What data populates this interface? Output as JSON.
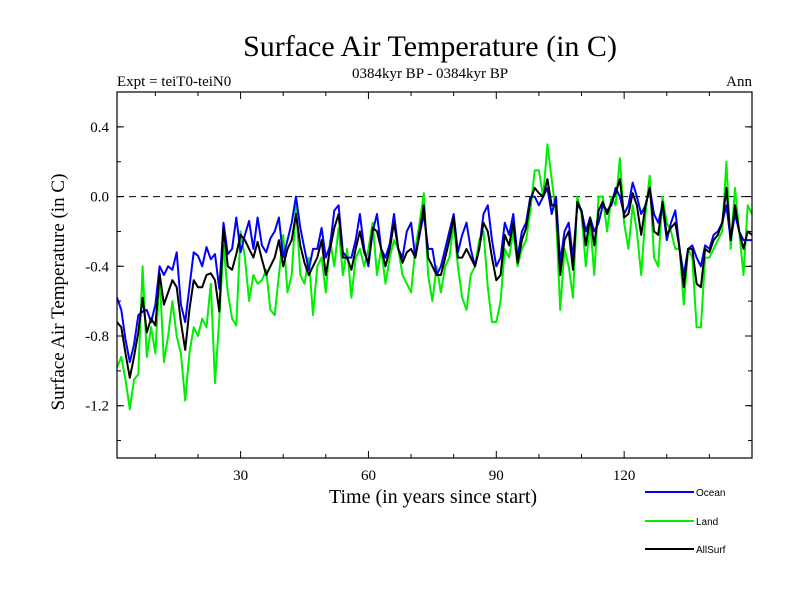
{
  "chart_data": {
    "type": "line",
    "title": "Surface Air Temperature (in C)",
    "subtitle": "0384kyr BP - 0384kyr BP",
    "left_label": "Expt = teiT0-teiN0",
    "right_label": "Ann",
    "xlabel": "Time (in years since start)",
    "ylabel": "Surface Air Temperature (in C)",
    "xlim": [
      1,
      150
    ],
    "ylim": [
      -1.5,
      0.6
    ],
    "xticks": [
      30,
      60,
      90,
      120
    ],
    "yticks": [
      -1.2,
      -0.8,
      -0.4,
      0.0,
      0.4
    ],
    "ytick_labels": [
      "-1.2",
      "-0.8",
      "-0.4",
      "0.0",
      "0.4"
    ],
    "reference_line": 0.0,
    "legend_position": "bottom-right",
    "series": [
      {
        "name": "Ocean",
        "color": "#0000ff",
        "values": [
          -0.58,
          -0.65,
          -0.82,
          -0.95,
          -0.85,
          -0.68,
          -0.66,
          -0.65,
          -0.72,
          -0.62,
          -0.4,
          -0.45,
          -0.4,
          -0.42,
          -0.32,
          -0.62,
          -0.72,
          -0.52,
          -0.32,
          -0.34,
          -0.4,
          -0.29,
          -0.36,
          -0.33,
          -0.53,
          -0.15,
          -0.33,
          -0.3,
          -0.12,
          -0.32,
          -0.22,
          -0.14,
          -0.3,
          -0.12,
          -0.28,
          -0.32,
          -0.24,
          -0.2,
          -0.12,
          -0.35,
          -0.25,
          -0.15,
          0.0,
          -0.18,
          -0.3,
          -0.42,
          -0.3,
          -0.3,
          -0.18,
          -0.35,
          -0.28,
          -0.08,
          -0.05,
          -0.32,
          -0.35,
          -0.35,
          -0.25,
          -0.1,
          -0.3,
          -0.4,
          -0.2,
          -0.1,
          -0.3,
          -0.35,
          -0.27,
          -0.1,
          -0.3,
          -0.35,
          -0.2,
          -0.15,
          -0.35,
          -0.22,
          -0.1,
          -0.3,
          -0.3,
          -0.45,
          -0.4,
          -0.3,
          -0.2,
          -0.1,
          -0.32,
          -0.22,
          -0.15,
          -0.3,
          -0.4,
          -0.3,
          -0.1,
          -0.05,
          -0.25,
          -0.4,
          -0.35,
          -0.15,
          -0.22,
          -0.1,
          -0.35,
          -0.2,
          -0.15,
          0.0,
          0.0,
          -0.05,
          0.0,
          0.05,
          -0.1,
          0.0,
          -0.38,
          -0.2,
          -0.15,
          -0.35,
          -0.05,
          -0.08,
          -0.2,
          -0.12,
          -0.2,
          -0.15,
          -0.05,
          -0.08,
          -0.05,
          0.05,
          0.0,
          -0.1,
          -0.05,
          0.08,
          0.0,
          -0.1,
          -0.05,
          0.05,
          -0.1,
          -0.15,
          -0.05,
          -0.25,
          -0.15,
          -0.08,
          -0.3,
          -0.45,
          -0.3,
          -0.28,
          -0.35,
          -0.4,
          -0.28,
          -0.3,
          -0.22,
          -0.2,
          -0.15,
          -0.05,
          -0.25,
          -0.1,
          -0.2,
          -0.25,
          -0.25,
          -0.25
        ]
      },
      {
        "name": "Land",
        "color": "#00ee00",
        "values": [
          -0.98,
          -0.92,
          -1.05,
          -1.22,
          -1.05,
          -1.02,
          -0.4,
          -0.92,
          -0.75,
          -0.9,
          -0.45,
          -0.95,
          -0.8,
          -0.6,
          -0.8,
          -0.9,
          -1.17,
          -0.9,
          -0.75,
          -0.8,
          -0.7,
          -0.75,
          -0.5,
          -1.07,
          -0.7,
          -0.28,
          -0.55,
          -0.7,
          -0.74,
          -0.2,
          -0.35,
          -0.6,
          -0.45,
          -0.5,
          -0.48,
          -0.42,
          -0.65,
          -0.68,
          -0.45,
          -0.22,
          -0.55,
          -0.45,
          -0.05,
          -0.45,
          -0.5,
          -0.35,
          -0.68,
          -0.4,
          -0.35,
          -0.55,
          -0.25,
          -0.4,
          -0.18,
          -0.45,
          -0.3,
          -0.58,
          -0.35,
          -0.3,
          -0.4,
          -0.3,
          -0.15,
          -0.45,
          -0.3,
          -0.5,
          -0.35,
          -0.25,
          -0.3,
          -0.45,
          -0.5,
          -0.55,
          -0.3,
          -0.15,
          0.02,
          -0.45,
          -0.6,
          -0.4,
          -0.55,
          -0.4,
          -0.35,
          -0.15,
          -0.4,
          -0.58,
          -0.65,
          -0.45,
          -0.4,
          -0.25,
          -0.2,
          -0.52,
          -0.72,
          -0.72,
          -0.6,
          -0.3,
          -0.35,
          -0.2,
          -0.4,
          -0.3,
          -0.25,
          -0.08,
          0.15,
          0.15,
          0.0,
          0.3,
          0.1,
          -0.1,
          -0.65,
          -0.3,
          -0.4,
          -0.58,
          0.0,
          -0.1,
          -0.4,
          -0.15,
          -0.45,
          0.0,
          0.0,
          -0.2,
          0.0,
          -0.05,
          0.22,
          -0.15,
          -0.3,
          -0.05,
          -0.2,
          -0.45,
          -0.1,
          0.12,
          -0.35,
          -0.4,
          0.0,
          -0.15,
          -0.2,
          -0.3,
          -0.3,
          -0.62,
          -0.3,
          -0.35,
          -0.75,
          -0.75,
          -0.35,
          -0.35,
          -0.3,
          -0.25,
          -0.2,
          0.2,
          -0.3,
          0.05,
          -0.2,
          -0.45,
          -0.05,
          -0.1
        ]
      },
      {
        "name": "AllSurf",
        "color": "#000000",
        "values": [
          -0.72,
          -0.75,
          -0.9,
          -1.04,
          -0.92,
          -0.78,
          -0.58,
          -0.78,
          -0.7,
          -0.74,
          -0.44,
          -0.62,
          -0.55,
          -0.48,
          -0.52,
          -0.72,
          -0.88,
          -0.65,
          -0.48,
          -0.52,
          -0.52,
          -0.45,
          -0.44,
          -0.48,
          -0.66,
          -0.18,
          -0.4,
          -0.42,
          -0.33,
          -0.22,
          -0.25,
          -0.3,
          -0.35,
          -0.26,
          -0.36,
          -0.45,
          -0.4,
          -0.35,
          -0.25,
          -0.4,
          -0.3,
          -0.25,
          -0.1,
          -0.28,
          -0.38,
          -0.45,
          -0.4,
          -0.35,
          -0.25,
          -0.45,
          -0.3,
          -0.18,
          -0.1,
          -0.35,
          -0.35,
          -0.42,
          -0.3,
          -0.2,
          -0.32,
          -0.38,
          -0.18,
          -0.2,
          -0.3,
          -0.4,
          -0.3,
          -0.15,
          -0.3,
          -0.38,
          -0.32,
          -0.3,
          -0.35,
          -0.2,
          -0.05,
          -0.35,
          -0.4,
          -0.45,
          -0.45,
          -0.35,
          -0.25,
          -0.12,
          -0.35,
          -0.35,
          -0.3,
          -0.35,
          -0.4,
          -0.3,
          -0.15,
          -0.2,
          -0.35,
          -0.48,
          -0.45,
          -0.22,
          -0.28,
          -0.15,
          -0.38,
          -0.25,
          -0.18,
          -0.02,
          0.05,
          0.02,
          0.0,
          0.1,
          -0.05,
          -0.05,
          -0.45,
          -0.25,
          -0.2,
          -0.42,
          -0.03,
          -0.08,
          -0.28,
          -0.12,
          -0.28,
          -0.08,
          -0.03,
          -0.1,
          -0.03,
          0.02,
          0.1,
          -0.12,
          -0.1,
          0.02,
          -0.05,
          -0.22,
          -0.05,
          0.05,
          -0.2,
          -0.22,
          -0.03,
          -0.22,
          -0.18,
          -0.15,
          -0.3,
          -0.52,
          -0.3,
          -0.3,
          -0.5,
          -0.52,
          -0.3,
          -0.32,
          -0.25,
          -0.22,
          -0.15,
          0.05,
          -0.25,
          -0.05,
          -0.2,
          -0.3,
          -0.2,
          -0.22
        ]
      }
    ]
  }
}
